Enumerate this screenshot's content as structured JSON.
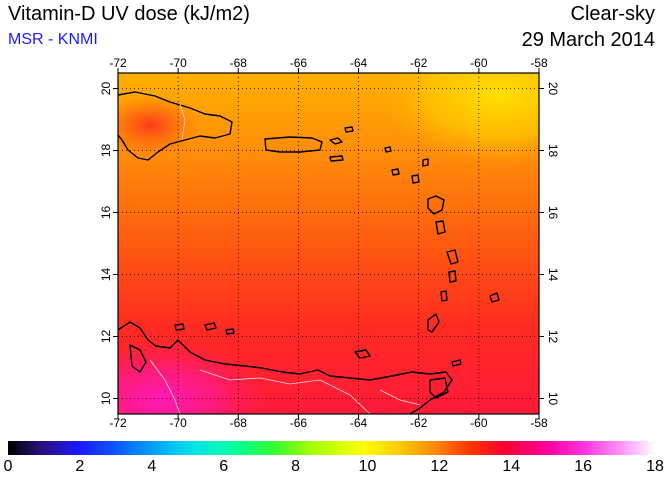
{
  "header": {
    "title": "Vitamin-D UV dose (kJ/m2)",
    "source": "MSR - KNMI",
    "sky_condition": "Clear-sky",
    "date": "29 March 2014"
  },
  "map": {
    "lon_ticks": [
      "-72",
      "-70",
      "-68",
      "-66",
      "-64",
      "-62",
      "-60",
      "-58"
    ],
    "lat_ticks": [
      "10",
      "12",
      "14",
      "16",
      "18",
      "20"
    ],
    "lon_range": [
      -72,
      -58
    ],
    "lat_range": [
      9.5,
      20.5
    ],
    "coastline_color": "#000000",
    "border_color": "#d9d9d9",
    "grid_style": "dotted"
  },
  "colorbar": {
    "labels": [
      "0",
      "2",
      "4",
      "6",
      "8",
      "10",
      "12",
      "14",
      "16",
      "18"
    ],
    "range": [
      0,
      18
    ]
  }
}
